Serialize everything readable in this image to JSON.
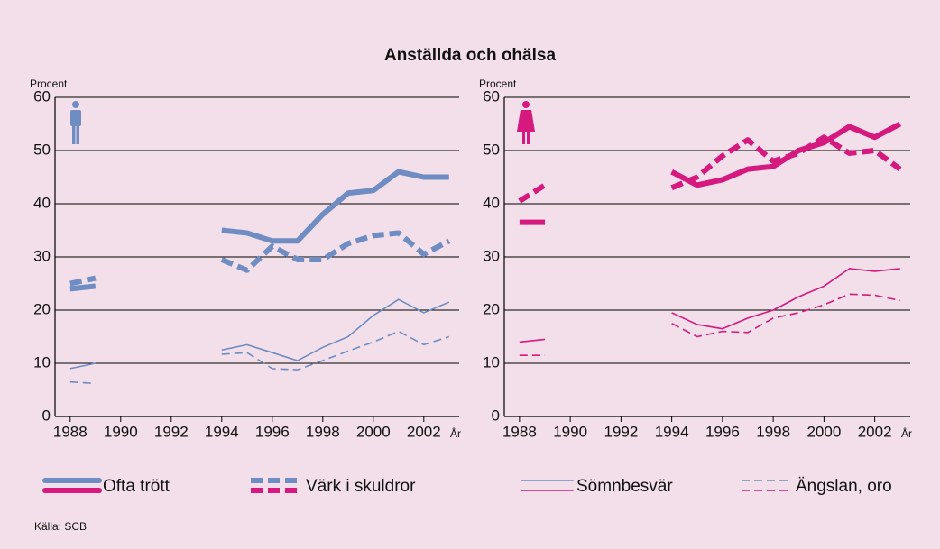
{
  "title": "Anställda och ohälsa",
  "source": "Källa: SCB",
  "chart_data": [
    {
      "type": "line",
      "y_label": "Procent",
      "x_label": "År",
      "x": [
        1988,
        1989,
        1990,
        1991,
        1992,
        1993,
        1994,
        1995,
        1996,
        1997,
        1998,
        1999,
        2000,
        2001,
        2002,
        2003
      ],
      "xlim": [
        1987.4,
        2003.4
      ],
      "xticks": [
        1988,
        1990,
        1992,
        1994,
        1996,
        1998,
        2000,
        2002
      ],
      "ylim": [
        0,
        60
      ],
      "yticks": [
        0,
        10,
        20,
        30,
        40,
        50,
        60
      ],
      "grid": true,
      "series": [
        {
          "name": "Ofta trött",
          "color": "#6f8dc2",
          "style": "thick",
          "values": [
            24,
            24.5,
            null,
            null,
            null,
            null,
            35,
            34.5,
            33,
            33,
            38,
            42,
            42.5,
            46,
            45,
            45
          ]
        },
        {
          "name": "Värk i skuldror",
          "color": "#6f8dc2",
          "style": "thick-dashed",
          "values": [
            25,
            26,
            null,
            null,
            null,
            null,
            29.5,
            27.5,
            32,
            29.5,
            29.5,
            32.5,
            34,
            34.5,
            30.5,
            33
          ]
        },
        {
          "name": "Sömnbesvär",
          "color": "#6f8dc2",
          "style": "thin",
          "values": [
            9,
            10,
            null,
            null,
            null,
            null,
            12.5,
            13.5,
            12,
            10.5,
            13,
            15,
            19,
            22,
            19.5,
            21.5
          ]
        },
        {
          "name": "Ängslan, oro",
          "color": "#6f8dc2",
          "style": "thin-dashed",
          "values": [
            6.5,
            6.2,
            null,
            null,
            null,
            null,
            11.7,
            12,
            9,
            8.8,
            10.5,
            12.3,
            14,
            16,
            13.5,
            15
          ]
        }
      ]
    },
    {
      "type": "line",
      "y_label": "Procent",
      "x_label": "År",
      "x": [
        1988,
        1989,
        1990,
        1991,
        1992,
        1993,
        1994,
        1995,
        1996,
        1997,
        1998,
        1999,
        2000,
        2001,
        2002,
        2003
      ],
      "xlim": [
        1987.4,
        2003.4
      ],
      "xticks": [
        1988,
        1990,
        1992,
        1994,
        1996,
        1998,
        2000,
        2002
      ],
      "ylim": [
        0,
        60
      ],
      "yticks": [
        0,
        10,
        20,
        30,
        40,
        50,
        60
      ],
      "grid": true,
      "series": [
        {
          "name": "Ofta trött",
          "color": "#d6197f",
          "style": "thick",
          "values": [
            36.5,
            36.5,
            null,
            null,
            null,
            null,
            46,
            43.5,
            44.5,
            46.5,
            47,
            50,
            51.5,
            54.5,
            52.5,
            55
          ]
        },
        {
          "name": "Värk i skuldror",
          "color": "#d6197f",
          "style": "thick-dashed",
          "values": [
            40.5,
            43.5,
            null,
            null,
            null,
            null,
            43,
            45,
            49,
            52,
            48,
            49.5,
            52.5,
            49.5,
            50,
            46.5
          ]
        },
        {
          "name": "Sömnbesvär",
          "color": "#d6197f",
          "style": "thin",
          "values": [
            14,
            14.5,
            null,
            null,
            null,
            null,
            19.5,
            17.3,
            16.5,
            18.5,
            20,
            22.5,
            24.5,
            27.8,
            27.3,
            27.8
          ]
        },
        {
          "name": "Ängslan, oro",
          "color": "#d6197f",
          "style": "thin-dashed",
          "values": [
            11.5,
            11.5,
            null,
            null,
            null,
            null,
            17.5,
            15,
            16,
            15.8,
            18.5,
            19.5,
            21,
            23,
            22.8,
            21.8
          ]
        }
      ]
    }
  ]
}
